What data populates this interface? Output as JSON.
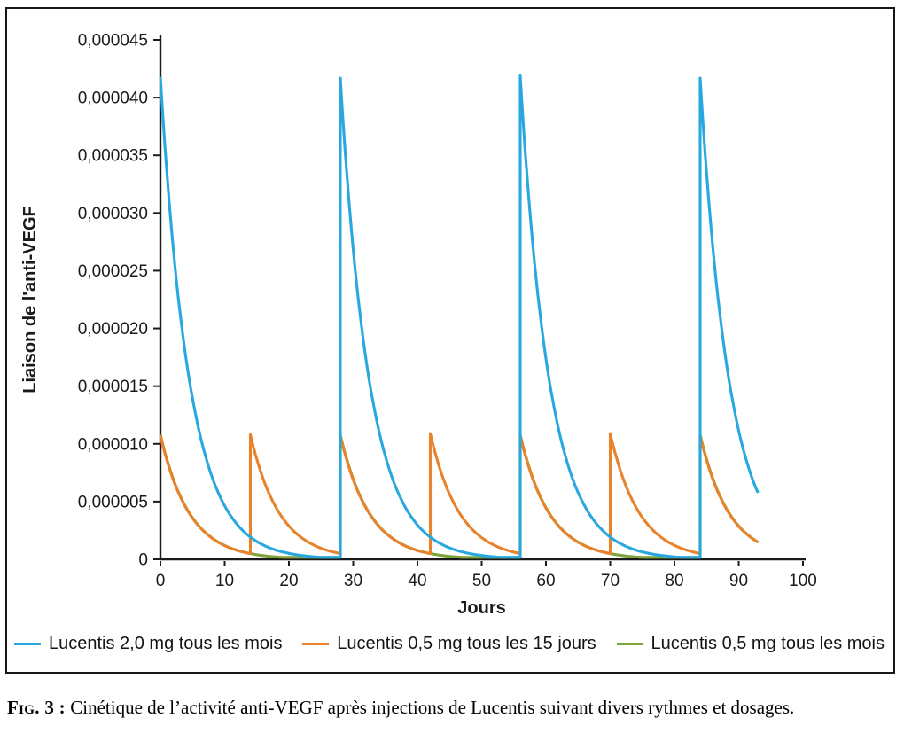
{
  "figure": {
    "caption_label": "Fig. 3 :",
    "caption_text": "Cinétique de l’activité anti-VEGF après injections de Lucentis suivant divers rythmes et dosages."
  },
  "chart_data": {
    "type": "line",
    "title": "",
    "xlabel": "Jours",
    "ylabel": "Liaison de l'anti-VEGF",
    "xlim": [
      0,
      100
    ],
    "ylim": [
      0,
      4.5e-05
    ],
    "grid": false,
    "legend_position": "bottom",
    "x_ticks": [
      0,
      10,
      20,
      30,
      40,
      50,
      60,
      70,
      80,
      90,
      100
    ],
    "y_ticks": [
      0,
      5e-06,
      1e-05,
      1.5e-05,
      2e-05,
      2.5e-05,
      3e-05,
      3.5e-05,
      4e-05,
      4.5e-05
    ],
    "y_tick_labels": [
      "0",
      "0,000005",
      "0,000010",
      "0,000015",
      "0,000020",
      "0,000025",
      "0,000030",
      "0,000035",
      "0,000040",
      "0,000045"
    ],
    "axis_color": "#1a1a1a",
    "series": [
      {
        "name": "Lucentis 0,5 mg tous les mois",
        "color": "#7ea43c",
        "injection_days": [
          0,
          28,
          56,
          84
        ],
        "peak": 1.08e-05,
        "decay_per_day": 0.22,
        "end_day": 93,
        "z_order": 0
      },
      {
        "name": "Lucentis 0,5 mg tous les 15 jours",
        "color": "#e8832c",
        "injection_days": [
          0,
          14,
          28,
          42,
          56,
          70,
          84
        ],
        "peak": 1.08e-05,
        "peaks": [
          1.07e-05,
          1.08e-05,
          1.07e-05,
          1.09e-05,
          1.07e-05,
          1.09e-05,
          1.07e-05
        ],
        "decay_per_day": 0.22,
        "end_day": 93,
        "z_order": 1
      },
      {
        "name": "Lucentis 2,0 mg tous les mois",
        "color": "#29a8e0",
        "injection_days": [
          0,
          28,
          56,
          84
        ],
        "peak": 4.18e-05,
        "peaks": [
          4.18e-05,
          4.17e-05,
          4.19e-05,
          4.17e-05
        ],
        "decay_per_day": 0.22,
        "end_day": 93,
        "z_order": 2
      }
    ],
    "legend_order": [
      2,
      1,
      0
    ]
  }
}
